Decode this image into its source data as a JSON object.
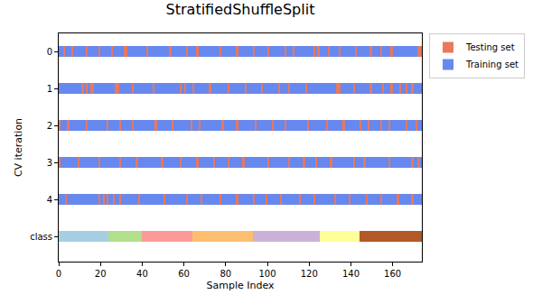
{
  "chart_data": {
    "type": "bar",
    "orientation": "horizontal",
    "title": "StratifiedShuffleSplit",
    "x_label": "Sample Index",
    "y_label": "CV iteration",
    "xlim": [
      0,
      174
    ],
    "xticks": [
      0,
      20,
      40,
      60,
      80,
      100,
      120,
      140,
      160
    ],
    "legend": "right",
    "series": [
      {
        "name": "Testing set",
        "color": "#e9785d"
      },
      {
        "name": "Training set",
        "color": "#6788ee"
      }
    ],
    "rows": [
      {
        "name": "0",
        "test_indices": [
          2,
          6,
          13,
          19,
          25,
          31,
          32,
          42,
          53,
          61,
          66,
          77,
          85,
          93,
          100,
          108,
          112,
          122,
          124,
          129,
          134,
          142,
          149,
          154,
          159,
          172,
          173
        ]
      },
      {
        "name": "1",
        "test_indices": [
          11,
          13,
          15,
          16,
          27,
          28,
          35,
          45,
          58,
          60,
          64,
          72,
          81,
          89,
          97,
          105,
          110,
          118,
          133,
          134,
          141,
          149,
          155,
          159,
          163,
          166,
          169
        ]
      },
      {
        "name": "2",
        "test_indices": [
          0,
          4,
          13,
          23,
          29,
          35,
          46,
          54,
          63,
          67,
          78,
          85,
          94,
          102,
          108,
          119,
          128,
          136,
          144,
          148,
          154,
          158,
          166,
          171
        ]
      },
      {
        "name": "3",
        "test_indices": [
          0,
          9,
          19,
          29,
          37,
          49,
          58,
          66,
          74,
          81,
          88,
          100,
          110,
          117,
          123,
          130,
          141,
          146,
          158,
          169,
          172
        ]
      },
      {
        "name": "4",
        "test_indices": [
          3,
          19,
          21,
          23,
          26,
          29,
          38,
          50,
          61,
          68,
          77,
          85,
          93,
          99,
          106,
          115,
          122,
          132,
          139,
          147,
          154,
          162,
          169
        ]
      }
    ],
    "class_row": {
      "name": "class",
      "bounds": [
        0,
        24,
        40,
        64,
        93,
        125,
        144,
        174
      ],
      "colors": [
        "#a6cee3",
        "#b2df8a",
        "#fb9a99",
        "#fdbf6f",
        "#cab2d6",
        "#ffff99",
        "#b15928"
      ]
    }
  }
}
